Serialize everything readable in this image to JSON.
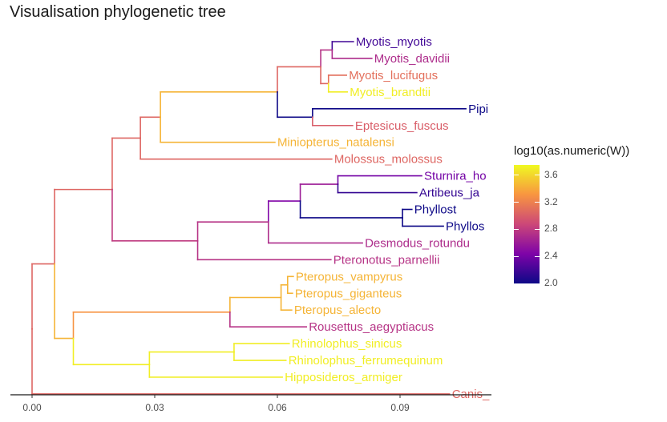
{
  "title": "Visualisation phylogenetic tree",
  "chart_data": {
    "type": "phylogenetic-tree",
    "x_axis": {
      "ticks": [
        0,
        0.03,
        0.06,
        0.09
      ],
      "tick_labels": [
        "0.00",
        "0.03",
        "0.06",
        "0.09"
      ],
      "range": [
        0,
        0.112
      ]
    },
    "color_legend": {
      "title": "log10(as.numeric(W))",
      "scale": "plasma",
      "range": [
        2.0,
        3.75
      ],
      "ticks": [
        2.0,
        2.4,
        2.8,
        3.2,
        3.6
      ],
      "tick_labels": [
        "2.0",
        "2.4",
        "2.8",
        "3.2",
        "3.6"
      ]
    },
    "nodes": [
      {
        "id": "root",
        "x": 0.0,
        "c": 3.05
      },
      {
        "id": "n_mammal",
        "x": 0.0055,
        "c": 3.05
      },
      {
        "id": "n_bats",
        "x": 0.0196,
        "c": 3.05
      },
      {
        "id": "n_vesp",
        "x": 0.0265,
        "c": 3.05
      },
      {
        "id": "n_vesp2",
        "x": 0.0314,
        "c": 3.05
      },
      {
        "id": "n_vesp3",
        "x": 0.06,
        "c": 3.45
      },
      {
        "id": "n_myotis",
        "x": 0.0706,
        "c": 3.05
      },
      {
        "id": "n_myo_md",
        "x": 0.0734,
        "c": 2.75
      },
      {
        "id": "n_myo_lb",
        "x": 0.0725,
        "c": 3.05
      },
      {
        "id": "n_pip",
        "x": 0.0686,
        "c": 2.0
      },
      {
        "id": "n_phyllo",
        "x": 0.0405,
        "c": 2.8
      },
      {
        "id": "n_phyllo2",
        "x": 0.0578,
        "c": 2.75
      },
      {
        "id": "n_phyllo3",
        "x": 0.0656,
        "c": 2.45
      },
      {
        "id": "n_stur",
        "x": 0.0748,
        "c": 2.6
      },
      {
        "id": "n_phyl",
        "x": 0.0906,
        "c": 2.0
      },
      {
        "id": "n_yin",
        "x": 0.0101,
        "c": 3.45
      },
      {
        "id": "n_ptero",
        "x": 0.0484,
        "c": 3.3
      },
      {
        "id": "n_ptero2",
        "x": 0.0609,
        "c": 3.45
      },
      {
        "id": "n_ptero3",
        "x": 0.0625,
        "c": 3.45
      },
      {
        "id": "n_rhino",
        "x": 0.0287,
        "c": 3.7
      },
      {
        "id": "n_rhino2",
        "x": 0.0494,
        "c": 3.7
      }
    ],
    "tips": [
      {
        "label": "Myotis_myotis",
        "x": 0.0786,
        "c": 2.2,
        "shown": "Myotis_myotis"
      },
      {
        "label": "Myotis_davidii",
        "x": 0.0831,
        "c": 2.7,
        "shown": "Myotis_davidii"
      },
      {
        "label": "Myotis_lucifugus",
        "x": 0.0769,
        "c": 3.1,
        "shown": "Myotis_lucifugus"
      },
      {
        "label": "Myotis_brandtii",
        "x": 0.0771,
        "c": 3.7,
        "shown": "Myotis_brandtii"
      },
      {
        "label": "Pipi",
        "x": 0.1061,
        "c": 2.0,
        "shown": "Pipi"
      },
      {
        "label": "Eptesicus_fuscus",
        "x": 0.0784,
        "c": 3.0,
        "shown": "Eptesicus_fuscus"
      },
      {
        "label": "Miniopterus_natalensi",
        "x": 0.0594,
        "c": 3.45,
        "shown": "Miniopterus_natalensi"
      },
      {
        "label": "Molossus_molossus",
        "x": 0.0733,
        "c": 3.05,
        "shown": "Molossus_molossus"
      },
      {
        "label": "Sturnira_ho",
        "x": 0.0953,
        "c": 2.4,
        "shown": "Sturnira_ho"
      },
      {
        "label": "Artibeus_ja",
        "x": 0.0941,
        "c": 2.15,
        "shown": "Artibeus_ja"
      },
      {
        "label": "Phyllost",
        "x": 0.0929,
        "c": 2.0,
        "shown": "Phyllost"
      },
      {
        "label": "Phyllos",
        "x": 0.1006,
        "c": 2.0,
        "shown": "Phyllos"
      },
      {
        "label": "Desmodus_rotundu",
        "x": 0.0808,
        "c": 2.7,
        "shown": "Desmodus_rotundu"
      },
      {
        "label": "Pteronotus_parnellii",
        "x": 0.0731,
        "c": 2.75,
        "shown": "Pteronotus_parnellii"
      },
      {
        "label": "Pteropus_vampyrus",
        "x": 0.0639,
        "c": 3.45,
        "shown": "Pteropus_vampyrus"
      },
      {
        "label": "Pteropus_giganteus",
        "x": 0.0637,
        "c": 3.45,
        "shown": "Pteropus_giganteus"
      },
      {
        "label": "Pteropus_alecto",
        "x": 0.0635,
        "c": 3.45,
        "shown": "Pteropus_alecto"
      },
      {
        "label": "Rousettus_aegyptiacus",
        "x": 0.0671,
        "c": 2.75,
        "shown": "Rousettus_aegyptiacus"
      },
      {
        "label": "Rhinolophus_sinicus",
        "x": 0.0629,
        "c": 3.7,
        "shown": "Rhinolophus_sinicus"
      },
      {
        "label": "Rhinolophus_ferrumequinum",
        "x": 0.0621,
        "c": 3.7,
        "shown": "Rhinolophus_ferrumequinum"
      },
      {
        "label": "Hipposideros_armiger",
        "x": 0.0612,
        "c": 3.7,
        "shown": "Hipposideros_armiger"
      },
      {
        "label": "Canis_",
        "x": 0.1021,
        "c": 3.05,
        "shown": "Canis_"
      }
    ],
    "edges": [
      [
        "root",
        "n_mammal"
      ],
      [
        "root",
        "Canis_"
      ],
      [
        "n_mammal",
        "n_bats"
      ],
      [
        "n_mammal",
        "n_yin"
      ],
      [
        "n_bats",
        "n_vesp"
      ],
      [
        "n_bats",
        "n_phyllo"
      ],
      [
        "n_vesp",
        "n_vesp2"
      ],
      [
        "n_vesp",
        "Molossus_molossus"
      ],
      [
        "n_vesp2",
        "n_vesp3"
      ],
      [
        "n_vesp2",
        "Miniopterus_natalensi"
      ],
      [
        "n_vesp3",
        "n_myotis"
      ],
      [
        "n_vesp3",
        "n_pip"
      ],
      [
        "n_myotis",
        "n_myo_md"
      ],
      [
        "n_myotis",
        "n_myo_lb"
      ],
      [
        "n_myo_md",
        "Myotis_myotis"
      ],
      [
        "n_myo_md",
        "Myotis_davidii"
      ],
      [
        "n_myo_lb",
        "Myotis_lucifugus"
      ],
      [
        "n_myo_lb",
        "Myotis_brandtii"
      ],
      [
        "n_pip",
        "Pipi"
      ],
      [
        "n_pip",
        "Eptesicus_fuscus"
      ],
      [
        "n_phyllo",
        "n_phyllo2"
      ],
      [
        "n_phyllo",
        "Pteronotus_parnellii"
      ],
      [
        "n_phyllo2",
        "n_phyllo3"
      ],
      [
        "n_phyllo2",
        "Desmodus_rotundu"
      ],
      [
        "n_phyllo3",
        "n_stur"
      ],
      [
        "n_phyllo3",
        "n_phyl"
      ],
      [
        "n_stur",
        "Sturnira_ho"
      ],
      [
        "n_stur",
        "Artibeus_ja"
      ],
      [
        "n_phyl",
        "Phyllost"
      ],
      [
        "n_phyl",
        "Phyllos"
      ],
      [
        "n_yin",
        "n_ptero"
      ],
      [
        "n_yin",
        "n_rhino"
      ],
      [
        "n_ptero",
        "n_ptero2"
      ],
      [
        "n_ptero",
        "Rousettus_aegyptiacus"
      ],
      [
        "n_ptero2",
        "n_ptero3"
      ],
      [
        "n_ptero2",
        "Pteropus_alecto"
      ],
      [
        "n_ptero3",
        "Pteropus_vampyrus"
      ],
      [
        "n_ptero3",
        "Pteropus_giganteus"
      ],
      [
        "n_rhino",
        "n_rhino2"
      ],
      [
        "n_rhino",
        "Hipposideros_armiger"
      ],
      [
        "n_rhino2",
        "Rhinolophus_sinicus"
      ],
      [
        "n_rhino2",
        "Rhinolophus_ferrumequinum"
      ]
    ]
  }
}
